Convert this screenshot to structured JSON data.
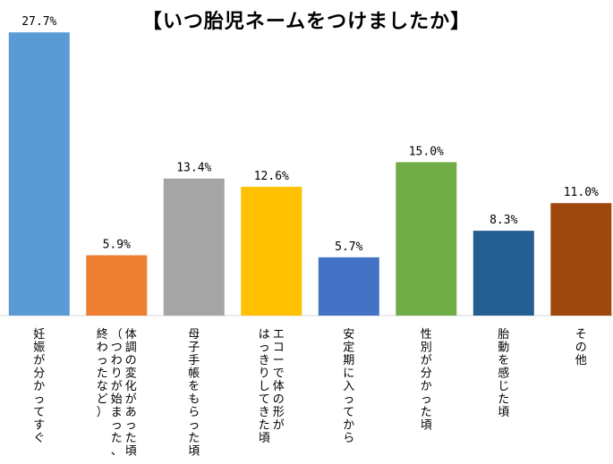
{
  "chart_data": {
    "type": "bar",
    "title": "【いつ胎児ネームをつけましたか】",
    "value_suffix": "%",
    "categories": [
      [
        "妊娠が分かってすぐ"
      ],
      [
        "体調の変化があった頃",
        "（つわりが始まった、",
        "終わったなど）"
      ],
      [
        "母子手帳をもらった頃"
      ],
      [
        "エコーで体の形が",
        "はっきりしてきた頃"
      ],
      [
        "安定期に入ってから"
      ],
      [
        "性別が分かった頃"
      ],
      [
        "胎動を感じた頃"
      ],
      [
        "その他"
      ]
    ],
    "values": [
      27.7,
      5.9,
      13.4,
      12.6,
      5.7,
      15.0,
      8.3,
      11.0
    ],
    "colors": [
      "#5b9bd5",
      "#ed7d31",
      "#a5a5a5",
      "#ffc000",
      "#4472c4",
      "#70ad47",
      "#255e91",
      "#9e480e"
    ],
    "ylim": [
      0,
      28.5
    ],
    "label_orientation": "vertical",
    "grid": false,
    "legend": "none"
  }
}
